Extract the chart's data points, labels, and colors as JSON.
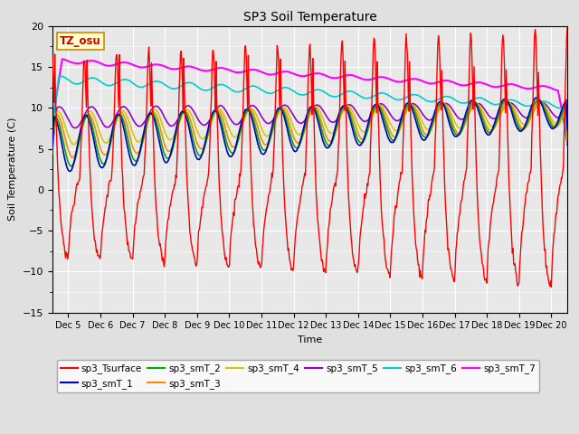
{
  "title": "SP3 Soil Temperature",
  "ylabel": "Soil Temperature (C)",
  "xlabel": "Time",
  "ylim": [
    -15,
    20
  ],
  "yticks": [
    -15,
    -10,
    -5,
    0,
    5,
    10,
    15,
    20
  ],
  "xtick_labels": [
    "Dec 5",
    "Dec 6",
    "Dec 7",
    "Dec 8",
    "Dec 9",
    "Dec 10",
    "Dec 11",
    "Dec 12",
    "Dec 13",
    "Dec 14",
    "Dec 15",
    "Dec 16",
    "Dec 17",
    "Dec 18",
    "Dec 19",
    "Dec 20"
  ],
  "xtick_positions": [
    5,
    6,
    7,
    8,
    9,
    10,
    11,
    12,
    13,
    14,
    15,
    16,
    17,
    18,
    19,
    20
  ],
  "fig_bg_color": "#e0e0e0",
  "plot_bg_color": "#e8e8e8",
  "series_colors": {
    "sp3_Tsurface": "#ff0000",
    "sp3_smT_1": "#0000bb",
    "sp3_smT_2": "#00aa00",
    "sp3_smT_3": "#ff8800",
    "sp3_smT_4": "#cccc00",
    "sp3_smT_5": "#9900cc",
    "sp3_smT_6": "#00cccc",
    "sp3_smT_7": "#ff00ff"
  },
  "annotation_text": "TZ_osu",
  "annotation_color": "#cc0000",
  "annotation_bg": "#ffffcc",
  "annotation_border": "#cc8800",
  "grid_color": "#ffffff",
  "figsize": [
    6.4,
    4.8
  ],
  "dpi": 100
}
